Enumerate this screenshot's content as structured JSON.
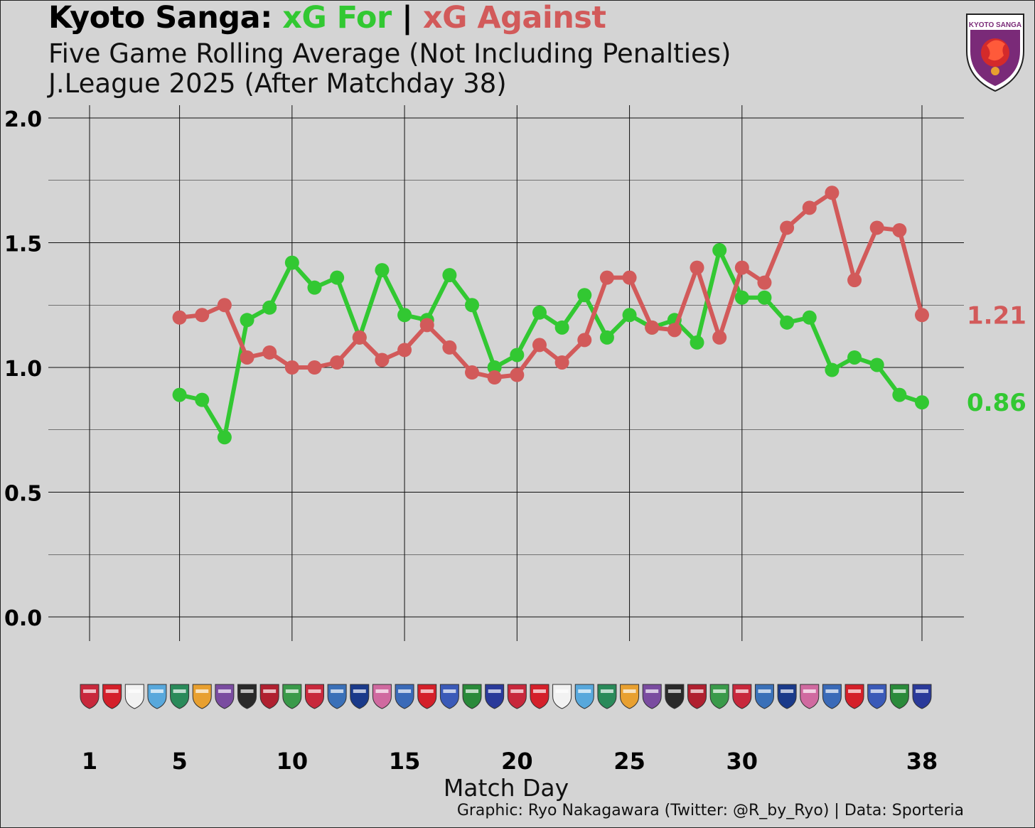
{
  "header": {
    "title_team": "Kyoto Sanga:",
    "title_for": "xG For",
    "title_sep": "|",
    "title_against": "xG Against",
    "subtitle1": "Five Game Rolling Average (Not Including Penalties)",
    "subtitle2": "J.League 2025 (After Matchday 38)"
  },
  "logo": {
    "text": "KYOTO SANGA",
    "icon": "kyoto-sanga-crest-icon"
  },
  "credit": "Graphic: Ryo Nakagawara (Twitter: @R_by_Ryo) | Data: Sporteria",
  "colors": {
    "for": "#32c832",
    "against": "#d25a5a",
    "background": "#d4d4d4"
  },
  "chart_data": {
    "type": "line",
    "title": "Kyoto Sanga: xG For | xG Against",
    "xlabel": "Match Day",
    "ylabel": "",
    "xlim": [
      1,
      38
    ],
    "ylim": [
      0,
      2
    ],
    "xticks": [
      1,
      5,
      10,
      15,
      20,
      25,
      30,
      38
    ],
    "yticks": [
      "0.0",
      "0.5",
      "1.0",
      "1.5",
      "2.0"
    ],
    "grid": true,
    "x": [
      5,
      6,
      7,
      8,
      9,
      10,
      11,
      12,
      13,
      14,
      15,
      16,
      17,
      18,
      19,
      20,
      21,
      22,
      23,
      24,
      25,
      26,
      27,
      28,
      29,
      30,
      31,
      32,
      33,
      34,
      35,
      36,
      37,
      38
    ],
    "series": [
      {
        "name": "xG For",
        "color": "#32c832",
        "values": [
          0.89,
          0.87,
          0.72,
          1.19,
          1.24,
          1.42,
          1.32,
          1.36,
          1.12,
          1.39,
          1.21,
          1.19,
          1.37,
          1.25,
          1.0,
          1.05,
          1.22,
          1.16,
          1.29,
          1.12,
          1.21,
          1.16,
          1.19,
          1.1,
          1.47,
          1.28,
          1.28,
          1.18,
          1.2,
          0.99,
          1.04,
          1.01,
          0.89,
          0.86
        ],
        "end_label": "0.86"
      },
      {
        "name": "xG Against",
        "color": "#d25a5a",
        "values": [
          1.2,
          1.21,
          1.25,
          1.04,
          1.06,
          1.0,
          1.0,
          1.02,
          1.12,
          1.03,
          1.07,
          1.17,
          1.08,
          0.98,
          0.96,
          0.97,
          1.09,
          1.02,
          1.11,
          1.36,
          1.36,
          1.16,
          1.15,
          1.4,
          1.12,
          1.4,
          1.34,
          1.56,
          1.64,
          1.7,
          1.35,
          1.56,
          1.55,
          1.21
        ],
        "end_label": "1.21"
      }
    ],
    "opponent_badges": [
      "sapporo-badge",
      "urawa-badge",
      "kobe-badge",
      "kawasaki-badge",
      "niigata-badge",
      "shimizu-badge",
      "hiroshima-badge",
      "kashiwa-badge",
      "kashima-badge",
      "shonan-badge",
      "okayama-badge",
      "yokohama-fc-badge",
      "gamba-badge",
      "cerezo-badge",
      "machida-badge",
      "nagoya-badge",
      "yokohama-fm-badge",
      "tokyo-verdy-badge",
      "fc-tokyo-badge",
      "urawa-badge",
      "kashiwa-badge",
      "gamba-badge",
      "okayama-badge",
      "niigata-badge",
      "nagoya-badge",
      "tokyo-verdy-badge",
      "shimizu-badge",
      "fc-tokyo-badge",
      "sapporo-badge",
      "hiroshima-badge",
      "machida-badge",
      "cerezo-badge",
      "kawasaki-badge",
      "shonan-badge",
      "kashima-badge",
      "yokohama-fm-badge",
      "yokohama-fc-badge",
      "kobe-badge"
    ]
  }
}
